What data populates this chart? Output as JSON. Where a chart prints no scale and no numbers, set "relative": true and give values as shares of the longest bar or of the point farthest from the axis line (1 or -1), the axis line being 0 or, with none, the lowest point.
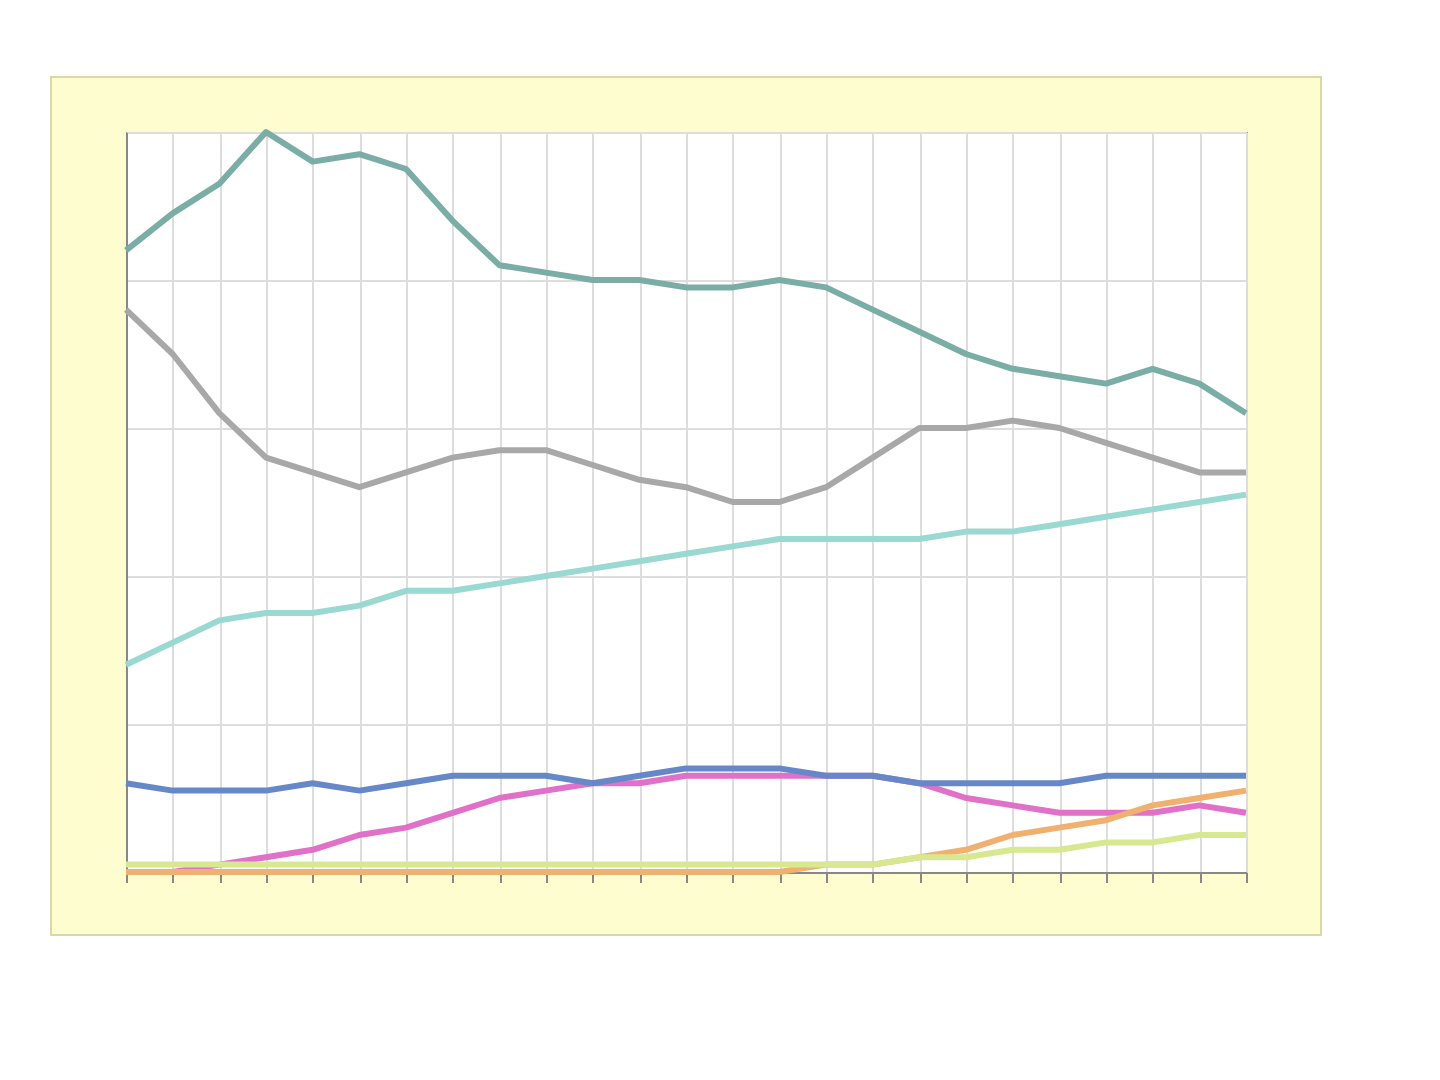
{
  "chart_data": {
    "type": "line",
    "relative": true,
    "grid": true,
    "line_style": "solid",
    "categories": [
      null,
      null,
      null,
      null,
      null,
      null,
      null,
      null,
      null,
      null,
      null,
      null,
      null,
      null,
      null,
      null,
      null,
      null,
      null,
      null,
      null,
      null,
      null,
      null,
      null
    ],
    "series": [
      {
        "color": "#7aada5",
        "values": [
          0.84,
          0.89,
          0.93,
          1,
          0.96,
          0.97,
          0.95,
          0.88,
          0.82,
          0.81,
          0.8,
          0.8,
          0.79,
          0.79,
          0.8,
          0.79,
          0.76,
          0.73,
          0.7,
          0.68,
          0.67,
          0.66,
          0.68,
          0.66,
          0.62
        ]
      },
      {
        "color": "#a8a8a8",
        "values": [
          0.76,
          0.7,
          0.62,
          0.56,
          0.54,
          0.52,
          0.54,
          0.56,
          0.57,
          0.57,
          0.55,
          0.53,
          0.52,
          0.5,
          0.5,
          0.52,
          0.56,
          0.6,
          0.6,
          0.61,
          0.6,
          0.58,
          0.56,
          0.54,
          0.54
        ]
      },
      {
        "color": "#9ad8d2",
        "values": [
          0.28,
          0.31,
          0.34,
          0.35,
          0.35,
          0.36,
          0.38,
          0.38,
          0.39,
          0.4,
          0.41,
          0.42,
          0.43,
          0.44,
          0.45,
          0.45,
          0.45,
          0.45,
          0.46,
          0.46,
          0.47,
          0.48,
          0.49,
          0.5,
          0.51
        ]
      },
      {
        "color": "#e070c8",
        "values": [
          0,
          0,
          0.01,
          0.02,
          0.03,
          0.05,
          0.06,
          0.08,
          0.1,
          0.11,
          0.12,
          0.12,
          0.13,
          0.13,
          0.13,
          0.13,
          0.13,
          0.12,
          0.1,
          0.09,
          0.08,
          0.08,
          0.08,
          0.09,
          0.08
        ]
      },
      {
        "color": "#6688c8",
        "values": [
          0.12,
          0.11,
          0.11,
          0.11,
          0.12,
          0.11,
          0.12,
          0.13,
          0.13,
          0.13,
          0.12,
          0.13,
          0.14,
          0.14,
          0.14,
          0.13,
          0.13,
          0.12,
          0.12,
          0.12,
          0.12,
          0.13,
          0.13,
          0.13,
          0.13
        ]
      },
      {
        "color": "#f0b070",
        "values": [
          0,
          0,
          0,
          0,
          0,
          0,
          0,
          0,
          0,
          0,
          0,
          0,
          0,
          0,
          0,
          0.01,
          0.01,
          0.02,
          0.03,
          0.05,
          0.06,
          0.07,
          0.09,
          0.1,
          0.11
        ]
      },
      {
        "color": "#d8e890",
        "values": [
          0.01,
          0.01,
          0.01,
          0.01,
          0.01,
          0.01,
          0.01,
          0.01,
          0.01,
          0.01,
          0.01,
          0.01,
          0.01,
          0.01,
          0.01,
          0.01,
          0.01,
          0.02,
          0.02,
          0.03,
          0.03,
          0.04,
          0.04,
          0.05,
          0.05
        ]
      }
    ]
  }
}
